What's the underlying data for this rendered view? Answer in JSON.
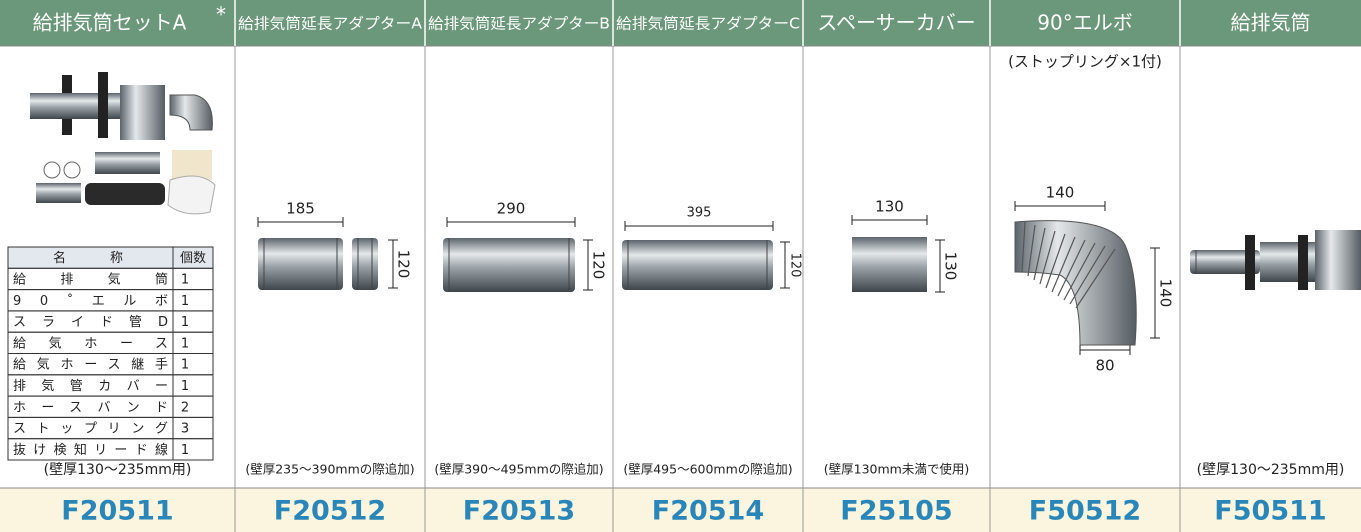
{
  "columns": [
    {
      "title": "給排気筒セットA",
      "title_mark": "*",
      "note": "(壁厚130～235mm用)",
      "code": "F20511"
    },
    {
      "title": "給排気筒延長アダプターA",
      "note": "(壁厚235～390mmの際追加)",
      "code": "F20512",
      "dimensions": [
        185,
        120
      ]
    },
    {
      "title": "給排気筒延長アダプターB",
      "note": "(壁厚390～495mmの際追加)",
      "code": "F20513",
      "dimensions": [
        290,
        120
      ]
    },
    {
      "title": "給排気筒延長アダプターC",
      "note": "(壁厚495～600mmの際追加)",
      "code": "F20514",
      "dimensions": [
        395,
        120
      ]
    },
    {
      "title": "スペーサーカバー",
      "note": "(壁厚130mm未満で使用)",
      "code": "F25105",
      "dimensions": [
        130,
        130
      ]
    },
    {
      "title": "90°エルボ",
      "caption": "(ストップリング×1付)",
      "code": "F50512",
      "dimensions": [
        140,
        140,
        80
      ]
    },
    {
      "title": "給排気筒",
      "note": "(壁厚130～235mm用)",
      "code": "F50511"
    }
  ],
  "parts_table": {
    "header": [
      "名称",
      "個数"
    ],
    "rows": [
      [
        "給排気筒",
        "1"
      ],
      [
        "90˚エルボ",
        "1"
      ],
      [
        "スライド管D",
        "1"
      ],
      [
        "給気ホース",
        "1"
      ],
      [
        "給気ホース継手",
        "1"
      ],
      [
        "排気管カバー",
        "1"
      ],
      [
        "ホースバンド",
        "2"
      ],
      [
        "ストップリング",
        "3"
      ],
      [
        "抜け検知リード線",
        "1"
      ]
    ]
  }
}
